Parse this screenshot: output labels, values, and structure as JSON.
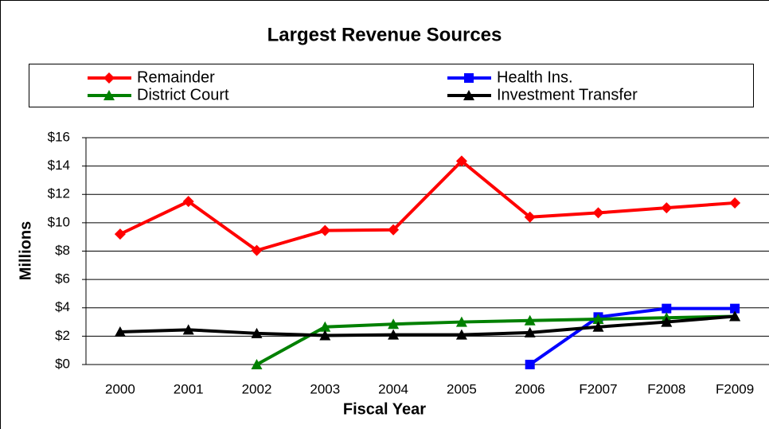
{
  "chart_data": {
    "type": "line",
    "title": "Largest Revenue Sources",
    "x_label": "Fiscal Year",
    "y_label": "Millions",
    "categories": [
      "2000",
      "2001",
      "2002",
      "2003",
      "2004",
      "2005",
      "2006",
      "F2007",
      "F2008",
      "F2009"
    ],
    "series": [
      {
        "name": "Remainder",
        "color": "#ff0000",
        "marker": "diamond",
        "values": [
          9.2,
          11.5,
          8.05,
          9.45,
          9.5,
          14.35,
          10.4,
          10.7,
          11.05,
          11.4
        ]
      },
      {
        "name": "Health Ins.",
        "color": "#0000ff",
        "marker": "square",
        "values": [
          null,
          null,
          null,
          null,
          null,
          null,
          0,
          3.35,
          3.95,
          3.95
        ]
      },
      {
        "name": "District Court",
        "color": "#008000",
        "marker": "triangle",
        "values": [
          null,
          null,
          0,
          2.65,
          2.85,
          3.0,
          3.1,
          3.2,
          3.3,
          3.4
        ]
      },
      {
        "name": "Investment Transfer",
        "color": "#000000",
        "marker": "triangle",
        "values": [
          2.3,
          2.45,
          2.2,
          2.05,
          2.1,
          2.1,
          2.25,
          2.65,
          3.0,
          3.4
        ]
      }
    ],
    "ylim": [
      0,
      16
    ],
    "yticks": [
      {
        "value": 0,
        "label": "$0"
      },
      {
        "value": 2,
        "label": "$2"
      },
      {
        "value": 4,
        "label": "$4"
      },
      {
        "value": 6,
        "label": "$6"
      },
      {
        "value": 8,
        "label": "$8"
      },
      {
        "value": 10,
        "label": "$10"
      },
      {
        "value": 12,
        "label": "$12"
      },
      {
        "value": 14,
        "label": "$14"
      },
      {
        "value": 16,
        "label": "$16"
      }
    ],
    "grid": true
  }
}
